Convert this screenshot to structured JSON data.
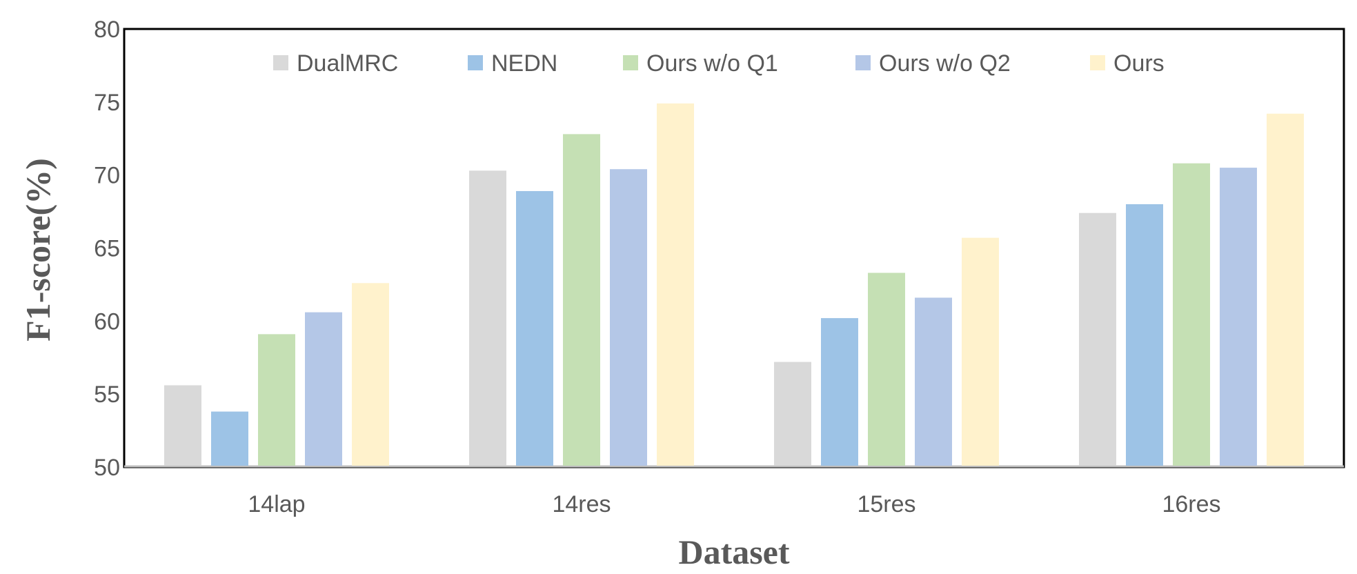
{
  "chart_data": {
    "type": "bar",
    "title": "",
    "xlabel": "Dataset",
    "ylabel": "F1-score(%)",
    "ylim": [
      50,
      80
    ],
    "yticks": [
      50,
      55,
      60,
      65,
      70,
      75,
      80
    ],
    "grid": false,
    "legend_position": "top-inside",
    "categories": [
      "14lap",
      "14res",
      "15res",
      "16res"
    ],
    "series": [
      {
        "name": "DualMRC",
        "color": "#d9d9d9",
        "values": [
          55.6,
          70.3,
          57.2,
          67.4
        ]
      },
      {
        "name": "NEDN",
        "color": "#9dc3e6",
        "values": [
          53.8,
          68.9,
          60.2,
          68.0
        ]
      },
      {
        "name": "Ours w/o Q1",
        "color": "#c5e0b4",
        "values": [
          59.1,
          72.8,
          63.3,
          70.8
        ]
      },
      {
        "name": "Ours w/o Q2",
        "color": "#b4c7e7",
        "values": [
          60.6,
          70.4,
          61.6,
          70.5
        ]
      },
      {
        "name": "Ours",
        "color": "#fff2cc",
        "values": [
          62.6,
          74.9,
          65.7,
          74.2
        ]
      }
    ]
  }
}
